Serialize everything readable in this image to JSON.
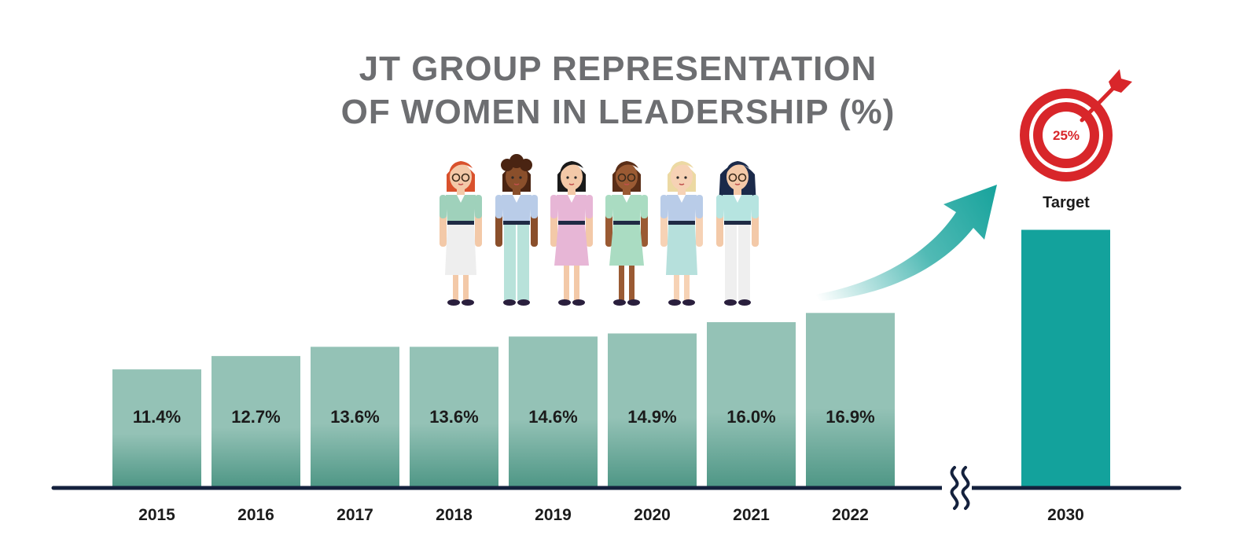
{
  "chart": {
    "title_line1": "JT GROUP REPRESENTATION",
    "title_line2": "OF WOMEN IN LEADERSHIP (%)",
    "target_label": "Target",
    "target_value_label": "25%"
  },
  "colors": {
    "bar": "#94c2b6",
    "bar_bottom": "#4f9786",
    "target_bar": "#13a29c",
    "axis": "#14213d",
    "target_red": "#d8262a",
    "arrow": "#17a39c"
  },
  "icons": [
    "woman-figure-icon",
    "target-icon",
    "growth-arrow-icon",
    "axis-break-icon"
  ],
  "chart_data": {
    "type": "bar",
    "title": "JT GROUP REPRESENTATION OF WOMEN IN LEADERSHIP (%)",
    "categories": [
      "2015",
      "2016",
      "2017",
      "2018",
      "2019",
      "2020",
      "2021",
      "2022",
      "2030"
    ],
    "values": [
      11.4,
      12.7,
      13.6,
      13.6,
      14.6,
      14.9,
      16.0,
      16.9,
      25
    ],
    "value_labels": [
      "11.4%",
      "12.7%",
      "13.6%",
      "13.6%",
      "14.6%",
      "14.9%",
      "16.0%",
      "16.9%",
      ""
    ],
    "target_category": "2030",
    "xlabel": "",
    "ylabel": "",
    "ylim": [
      0,
      25
    ],
    "grid": false,
    "legend": "none",
    "axis_break": "between 2022 and 2030"
  }
}
